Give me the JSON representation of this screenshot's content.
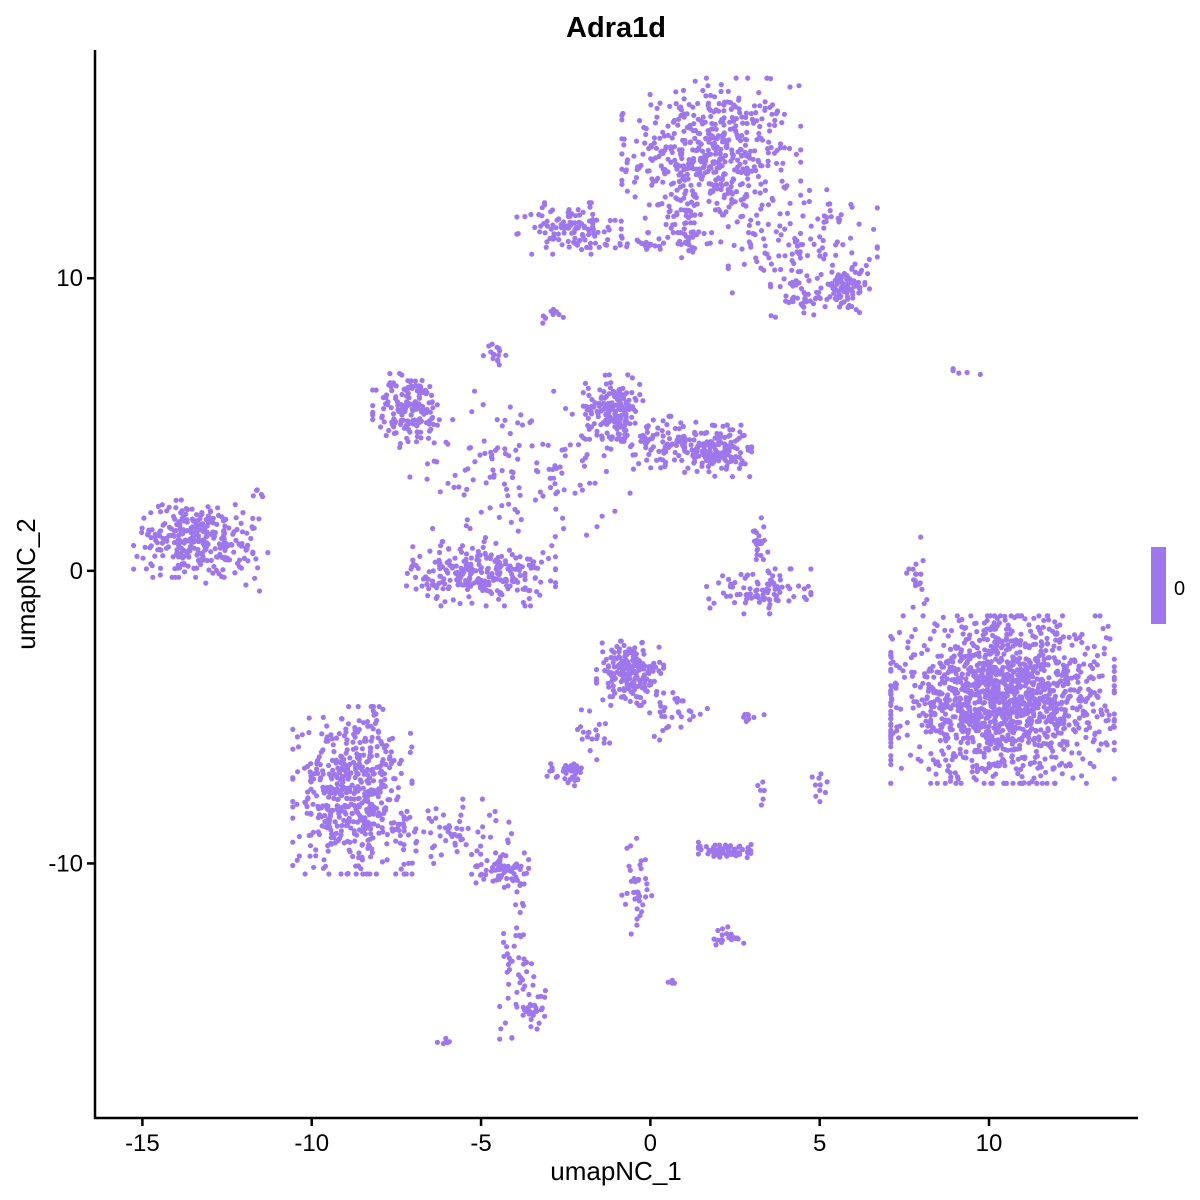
{
  "chart_data": {
    "type": "scatter",
    "title": "Adra1d",
    "xlabel": "umapNC_1",
    "ylabel": "umapNC_2",
    "xlim": [
      -16.4,
      14.4
    ],
    "ylim": [
      -18.7,
      17.8
    ],
    "xticks": [
      -15,
      -10,
      -5,
      0,
      5,
      10
    ],
    "yticks": [
      -10,
      0,
      10
    ],
    "grid": false,
    "point_color": "#9E77EC",
    "legend": {
      "position": "right",
      "type": "colorbar",
      "labels": [
        "0"
      ],
      "color": "#9E77EC"
    },
    "clusters": [
      {
        "center": [
          1.8,
          14.2
        ],
        "spread": [
          1.2,
          1.2
        ],
        "n": 520
      },
      {
        "center": [
          4.5,
          11.2
        ],
        "spread": [
          1.0,
          0.9
        ],
        "n": 130
      },
      {
        "center": [
          5.7,
          9.6
        ],
        "spread": [
          0.35,
          0.35
        ],
        "n": 80
      },
      {
        "center": [
          4.4,
          9.3
        ],
        "spread": [
          0.4,
          0.3
        ],
        "n": 30
      },
      {
        "center": [
          -2.4,
          11.7
        ],
        "spread": [
          0.7,
          0.4
        ],
        "n": 110
      },
      {
        "center": [
          0.1,
          11.2
        ],
        "spread": [
          0.9,
          0.15
        ],
        "n": 40
      },
      {
        "center": [
          1.1,
          11.8
        ],
        "spread": [
          0.25,
          0.5
        ],
        "n": 40
      },
      {
        "center": [
          -2.9,
          8.7
        ],
        "spread": [
          0.15,
          0.15
        ],
        "n": 10
      },
      {
        "center": [
          -4.6,
          7.4
        ],
        "spread": [
          0.15,
          0.2
        ],
        "n": 15
      },
      {
        "center": [
          -7.1,
          5.5
        ],
        "spread": [
          0.5,
          0.6
        ],
        "n": 160
      },
      {
        "center": [
          -1.1,
          5.6
        ],
        "spread": [
          0.4,
          0.5
        ],
        "n": 170
      },
      {
        "center": [
          0.4,
          4.4
        ],
        "spread": [
          0.9,
          0.4
        ],
        "n": 120
      },
      {
        "center": [
          2.0,
          4.1
        ],
        "spread": [
          0.45,
          0.4
        ],
        "n": 150
      },
      {
        "center": [
          -3.8,
          3.5
        ],
        "spread": [
          1.5,
          1.2
        ],
        "n": 140
      },
      {
        "center": [
          -5.0,
          -0.1
        ],
        "spread": [
          1.0,
          0.5
        ],
        "n": 260
      },
      {
        "center": [
          -13.5,
          1.1
        ],
        "spread": [
          0.8,
          0.6
        ],
        "n": 270
      },
      {
        "center": [
          -12.2,
          0.8
        ],
        "spread": [
          0.6,
          0.8
        ],
        "n": 40
      },
      {
        "center": [
          3.2,
          -0.7
        ],
        "spread": [
          0.7,
          0.35
        ],
        "n": 90
      },
      {
        "center": [
          3.2,
          0.8
        ],
        "spread": [
          0.25,
          0.5
        ],
        "n": 25
      },
      {
        "center": [
          10.4,
          -4.4
        ],
        "spread": [
          1.5,
          1.3
        ],
        "n": 1500
      },
      {
        "center": [
          -0.6,
          -3.5
        ],
        "spread": [
          0.45,
          0.5
        ],
        "n": 200
      },
      {
        "center": [
          0.8,
          -4.9
        ],
        "spread": [
          0.4,
          0.4
        ],
        "n": 30
      },
      {
        "center": [
          -8.8,
          -7.5
        ],
        "spread": [
          0.8,
          1.3
        ],
        "n": 520
      },
      {
        "center": [
          -6.3,
          -8.9
        ],
        "spread": [
          1.0,
          0.5
        ],
        "n": 80
      },
      {
        "center": [
          -4.4,
          -10.3
        ],
        "spread": [
          0.4,
          0.3
        ],
        "n": 70
      },
      {
        "center": [
          -3.9,
          -13.0
        ],
        "spread": [
          0.25,
          1.5
        ],
        "n": 50
      },
      {
        "center": [
          -3.5,
          -15.0
        ],
        "spread": [
          0.2,
          0.3
        ],
        "n": 30
      },
      {
        "center": [
          2.3,
          -9.6
        ],
        "spread": [
          0.4,
          0.15
        ],
        "n": 70
      },
      {
        "center": [
          -2.4,
          -6.9
        ],
        "spread": [
          0.3,
          0.2
        ],
        "n": 40
      },
      {
        "center": [
          -1.7,
          -5.5
        ],
        "spread": [
          0.25,
          0.5
        ],
        "n": 20
      },
      {
        "center": [
          -0.4,
          -10.9
        ],
        "spread": [
          0.2,
          0.8
        ],
        "n": 40
      },
      {
        "center": [
          2.3,
          -12.5
        ],
        "spread": [
          0.25,
          0.15
        ],
        "n": 20
      },
      {
        "center": [
          5.0,
          -7.3
        ],
        "spread": [
          0.1,
          0.3
        ],
        "n": 10
      },
      {
        "center": [
          2.9,
          -5.0
        ],
        "spread": [
          0.3,
          0.1
        ],
        "n": 8
      },
      {
        "center": [
          3.3,
          -7.5
        ],
        "spread": [
          0.1,
          0.3
        ],
        "n": 6
      },
      {
        "center": [
          7.9,
          -0.1
        ],
        "spread": [
          0.15,
          0.6
        ],
        "n": 20
      },
      {
        "center": [
          9.6,
          6.8
        ],
        "spread": [
          0.3,
          0.08
        ],
        "n": 5
      },
      {
        "center": [
          -6.1,
          -16.1
        ],
        "spread": [
          0.1,
          0.08
        ],
        "n": 6
      },
      {
        "center": [
          0.6,
          -14.1
        ],
        "spread": [
          0.05,
          0.05
        ],
        "n": 4
      },
      {
        "center": [
          -11.6,
          2.6
        ],
        "spread": [
          0.1,
          0.15
        ],
        "n": 5
      }
    ]
  }
}
